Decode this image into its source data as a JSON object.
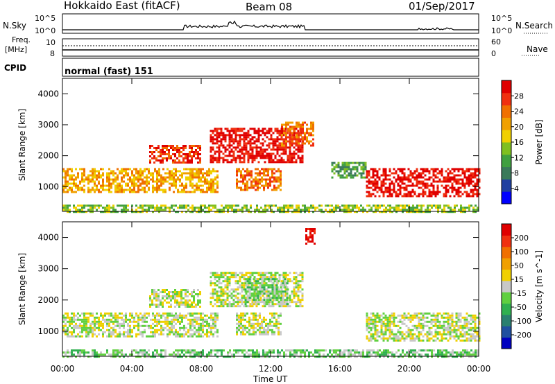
{
  "header": {
    "station": "Hokkaido East (fitACF)",
    "beam": "Beam 08",
    "date": "01/Sep/2017"
  },
  "strips": {
    "nsky": {
      "label": "N.Sky",
      "ticks_left": [
        "10^5",
        "10^0"
      ],
      "ticks_right": [
        "10^5",
        "10^0"
      ],
      "legend": "N.Search"
    },
    "freq": {
      "label_line1": "Freq.",
      "label_line2": "[MHz]",
      "ticks_left": [
        "10",
        "8"
      ],
      "ticks_right": [
        "60",
        "0"
      ],
      "legend": "Nave"
    },
    "cpid": {
      "label": "CPID",
      "text": "normal (fast) 151"
    }
  },
  "chart_data": [
    {
      "type": "heatmap",
      "name": "power",
      "ylabel": "Slant Range [km]",
      "yticks": [
        "1000",
        "2000",
        "3000",
        "4000"
      ],
      "ylim": [
        200,
        4500
      ],
      "colorbar": {
        "label": "Power [dB]",
        "ticks": [
          "4",
          "8",
          "12",
          "16",
          "20",
          "24",
          "28"
        ],
        "colors": [
          "#0000ff",
          "#2040a0",
          "#3a7a5a",
          "#40a040",
          "#80c020",
          "#f0d000",
          "#f0a000",
          "#f07000",
          "#f03010",
          "#e00000"
        ]
      },
      "bands": [
        {
          "t0": 0.0,
          "t1": 9.0,
          "r0": 850,
          "r1": 1600,
          "level": 6
        },
        {
          "t0": 5.0,
          "t1": 8.0,
          "r0": 1800,
          "r1": 2350,
          "level": 8
        },
        {
          "t0": 8.5,
          "t1": 13.8,
          "r0": 1800,
          "r1": 2900,
          "level": 9
        },
        {
          "t0": 10.0,
          "t1": 12.6,
          "r0": 900,
          "r1": 1600,
          "level": 7
        },
        {
          "t0": 12.6,
          "t1": 14.5,
          "r0": 2300,
          "r1": 3100,
          "level": 7
        },
        {
          "t0": 15.5,
          "t1": 17.5,
          "r0": 1300,
          "r1": 1800,
          "level": 3
        },
        {
          "t0": 17.5,
          "t1": 24.0,
          "r0": 700,
          "r1": 1600,
          "level": 9
        },
        {
          "t0": 0.0,
          "t1": 24.0,
          "r0": 200,
          "r1": 420,
          "level": 4
        }
      ]
    },
    {
      "type": "heatmap",
      "name": "velocity",
      "ylabel": "Slant Range [km]",
      "yticks": [
        "1000",
        "2000",
        "3000",
        "4000"
      ],
      "ylim": [
        200,
        4500
      ],
      "colorbar": {
        "label": "Velocity [m s^-1]",
        "ticks": [
          "200",
          "100",
          "50",
          "15",
          "-15",
          "-50",
          "-100",
          "-200"
        ],
        "colors": [
          "#0000c0",
          "#2050a0",
          "#2a8070",
          "#30b050",
          "#60d040",
          "#c8c8c8",
          "#f0d000",
          "#f0a000",
          "#f07000",
          "#f03010",
          "#e00000"
        ]
      },
      "bands": [
        {
          "t0": 0.0,
          "t1": 9.0,
          "r0": 850,
          "r1": 1600,
          "level": 5
        },
        {
          "t0": 5.0,
          "t1": 8.0,
          "r0": 1800,
          "r1": 2350,
          "level": 5
        },
        {
          "t0": 8.5,
          "t1": 13.8,
          "r0": 1800,
          "r1": 2900,
          "level": 5
        },
        {
          "t0": 10.5,
          "t1": 13.0,
          "r0": 1900,
          "r1": 2700,
          "level": 4
        },
        {
          "t0": 10.0,
          "t1": 12.6,
          "r0": 900,
          "r1": 1600,
          "level": 5
        },
        {
          "t0": 14.0,
          "t1": 14.6,
          "r0": 3800,
          "r1": 4300,
          "level": 10
        },
        {
          "t0": 17.5,
          "t1": 24.0,
          "r0": 700,
          "r1": 1600,
          "level": 5
        },
        {
          "t0": 0.0,
          "t1": 24.0,
          "r0": 200,
          "r1": 420,
          "level": 4
        }
      ]
    }
  ],
  "xaxis": {
    "label": "Time UT",
    "ticks": [
      "00:00",
      "04:00",
      "08:00",
      "12:00",
      "16:00",
      "20:00",
      "00:00"
    ],
    "range_hours": [
      0,
      24
    ]
  }
}
